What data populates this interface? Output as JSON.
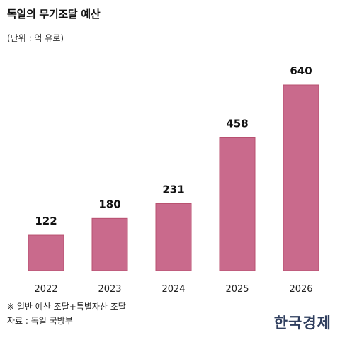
{
  "header": {
    "title": "독일의 무기조달 예산",
    "unit": "(단위 : 억 유로)"
  },
  "chart_data": {
    "type": "bar",
    "title": "독일의 무기조달 예산",
    "subtitle": "(단위 : 억 유로)",
    "xlabel": "",
    "ylabel": "",
    "categories": [
      "2022",
      "2023",
      "2024",
      "2025",
      "2026"
    ],
    "values": [
      122,
      180,
      231,
      458,
      640
    ],
    "data_labels": [
      "122",
      "180",
      "231",
      "458",
      "640"
    ],
    "ylim": [
      0,
      700
    ],
    "grid": false,
    "bar_color": "#c96a8c",
    "bar_edge_color": "#b8506f",
    "axis_color": "#cccccc"
  },
  "footer": {
    "note": "※ 일반 예산 조달+특별자산 조달",
    "source": "자료 : 독일 국방부",
    "logo_text": "한국경제"
  }
}
